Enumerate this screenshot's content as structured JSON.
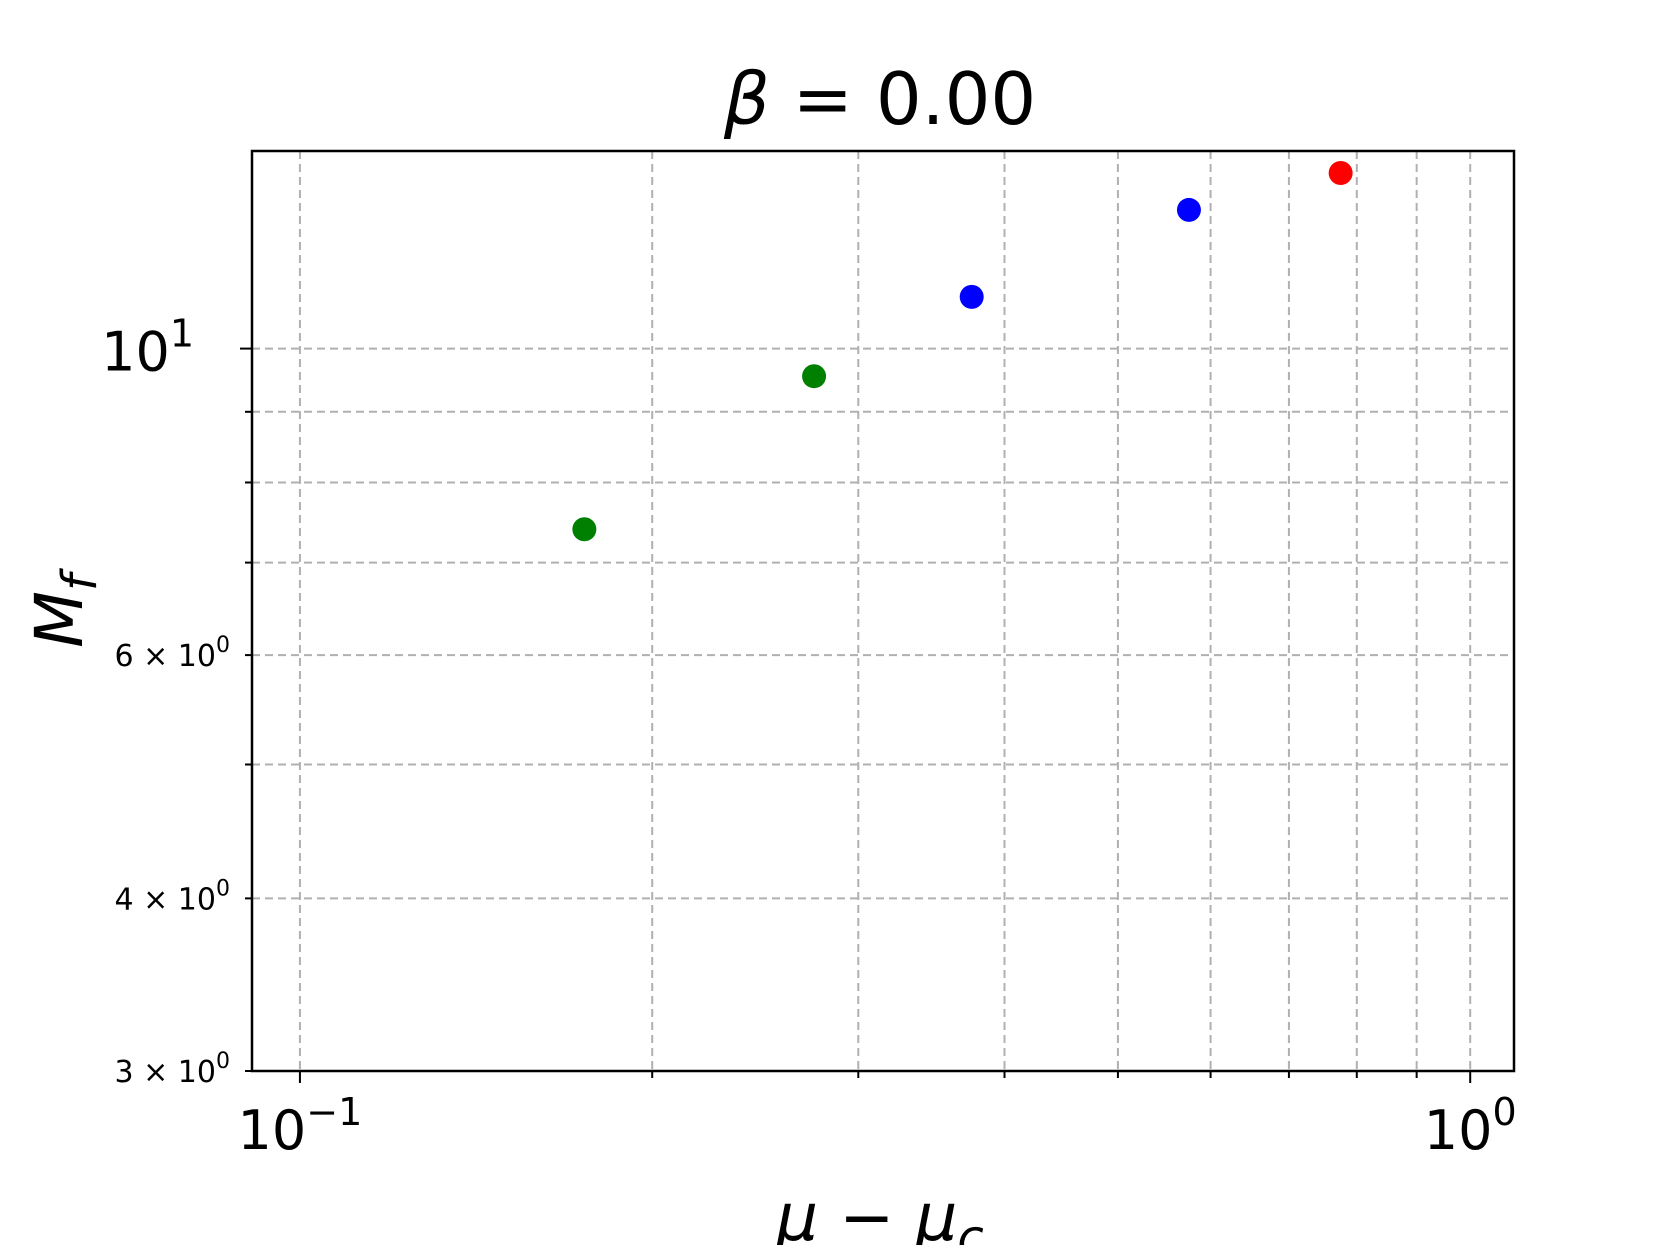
{
  "chart_data": {
    "type": "scatter",
    "title": "β = 0.00",
    "title_parts": {
      "var": "β",
      "rest": " = 0.00"
    },
    "xlabel": "μ − μ",
    "xlabel_sub": "c",
    "ylabel": "M",
    "ylabel_sub": "f",
    "xscale": "log",
    "yscale": "log",
    "xlim": [
      0.091,
      1.09
    ],
    "ylim": [
      3.0,
      13.9
    ],
    "grid": true,
    "x_major_ticks": [
      {
        "value": 0.1,
        "base": "10",
        "exp": "−1"
      },
      {
        "value": 1.0,
        "base": "10",
        "exp": "0"
      }
    ],
    "x_minor_ticks": [
      0.2,
      0.3,
      0.4,
      0.5,
      0.6,
      0.7,
      0.8,
      0.9
    ],
    "y_major_ticks": [
      {
        "value": 10,
        "base": "10",
        "exp": "1"
      }
    ],
    "y_minor_ticks": [
      {
        "value": 3,
        "label": "3 × 10",
        "exp": "0"
      },
      {
        "value": 4,
        "label": "4 × 10",
        "exp": "0"
      },
      {
        "value": 5,
        "label": "",
        "exp": ""
      },
      {
        "value": 6,
        "label": "6 × 10",
        "exp": "0"
      },
      {
        "value": 7,
        "label": "",
        "exp": ""
      },
      {
        "value": 8,
        "label": "",
        "exp": ""
      },
      {
        "value": 9,
        "label": "",
        "exp": ""
      }
    ],
    "points": [
      {
        "x": 0.175,
        "y": 7.4,
        "color": "#008000"
      },
      {
        "x": 0.275,
        "y": 9.55,
        "color": "#008000"
      },
      {
        "x": 0.375,
        "y": 10.9,
        "color": "#0000ff"
      },
      {
        "x": 0.575,
        "y": 12.6,
        "color": "#0000ff"
      },
      {
        "x": 0.775,
        "y": 13.4,
        "color": "#ff0000"
      }
    ],
    "colors": {
      "grid": "#b0b0b0",
      "frame": "#000000"
    }
  }
}
